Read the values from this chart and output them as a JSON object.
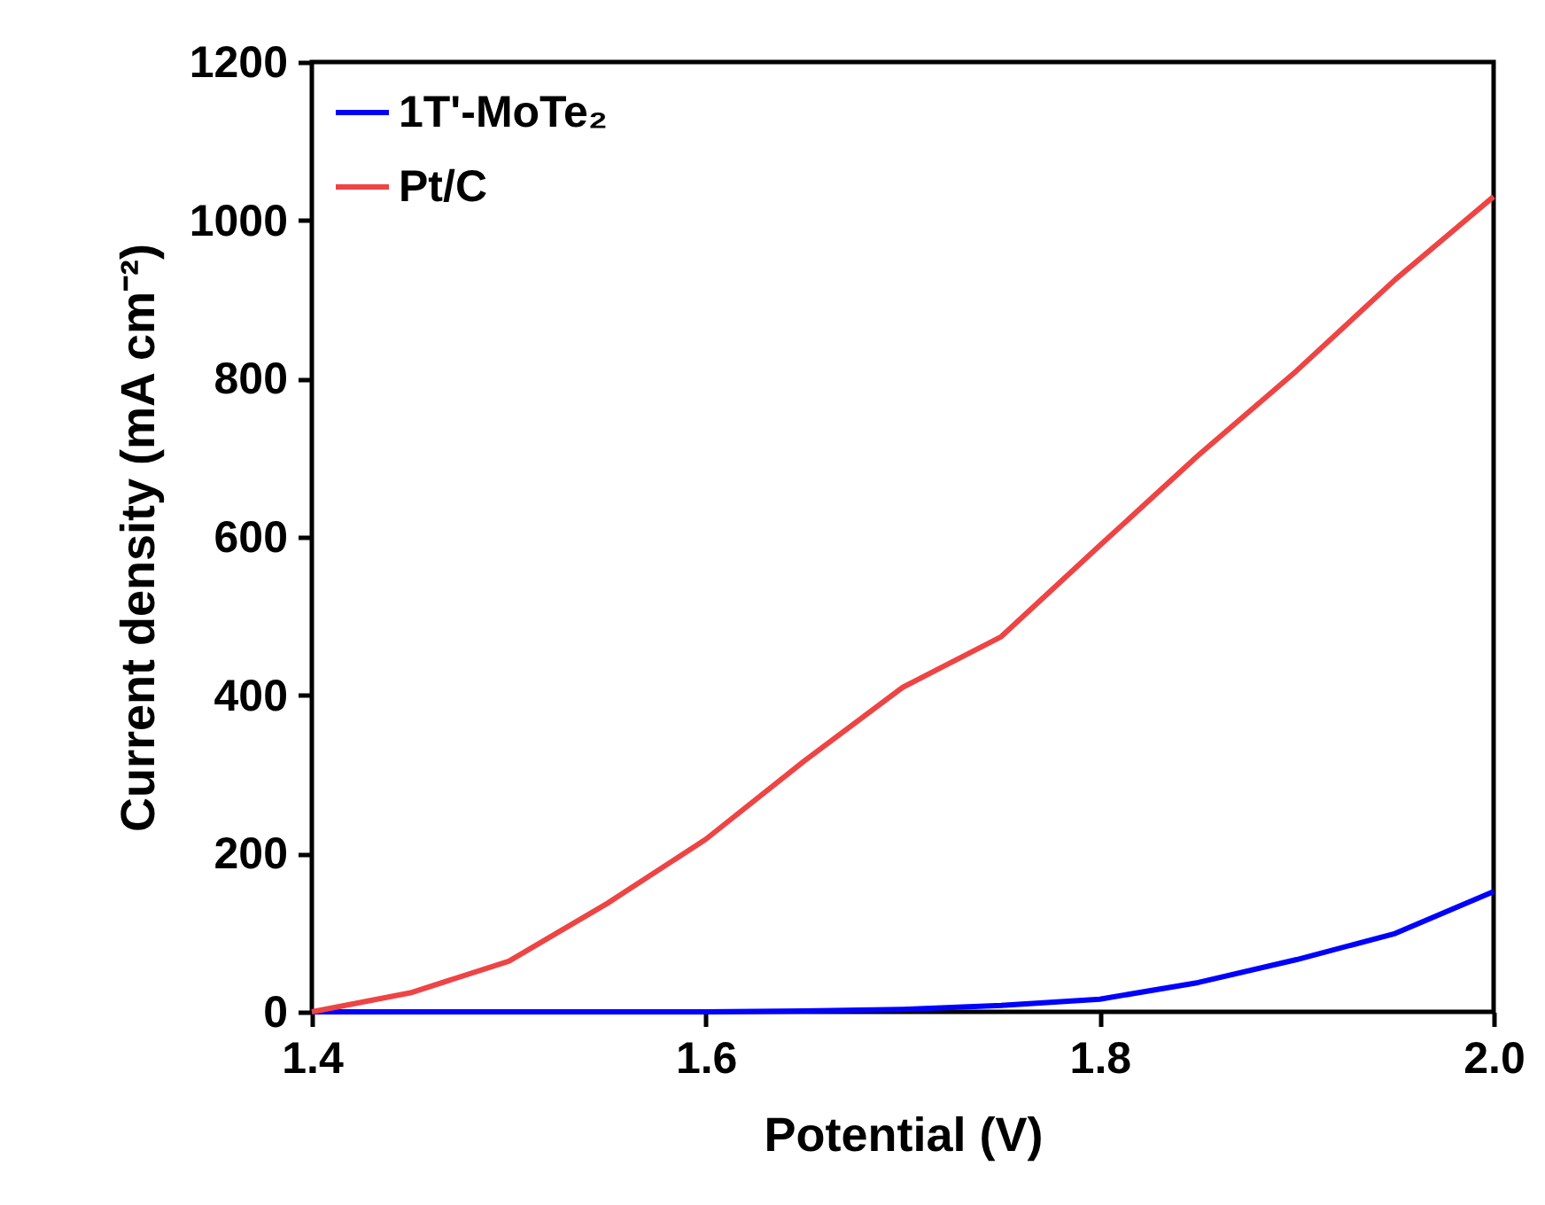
{
  "chart_data": {
    "type": "line",
    "xlabel": "Potential (V)",
    "ylabel": "Current density (mA cm⁻²)",
    "x": [
      1.4,
      1.45,
      1.5,
      1.55,
      1.6,
      1.65,
      1.7,
      1.75,
      1.8,
      1.85,
      1.9,
      1.95,
      2.0
    ],
    "series": [
      {
        "name": "1T'-MoTe₂",
        "color": "#0000ff",
        "values": [
          0,
          0,
          0,
          0,
          0,
          1,
          3,
          8,
          16,
          37,
          66,
          99,
          152
        ]
      },
      {
        "name": "Pt/C",
        "color": "#ee4444",
        "values": [
          0,
          24,
          64,
          137,
          218,
          317,
          410,
          474,
          589,
          703,
          810,
          925,
          1030
        ]
      }
    ],
    "xlim": [
      1.4,
      2.0
    ],
    "xticks": [
      1.4,
      1.6,
      1.8,
      {
        "value": 2,
        "label": "2.0"
      }
    ],
    "ylim": [
      0,
      1200
    ],
    "yticks": [
      0,
      200,
      400,
      600,
      800,
      1000,
      1200
    ],
    "grid": false,
    "legend": "top left",
    "marker": "none",
    "line_style": "solid"
  }
}
